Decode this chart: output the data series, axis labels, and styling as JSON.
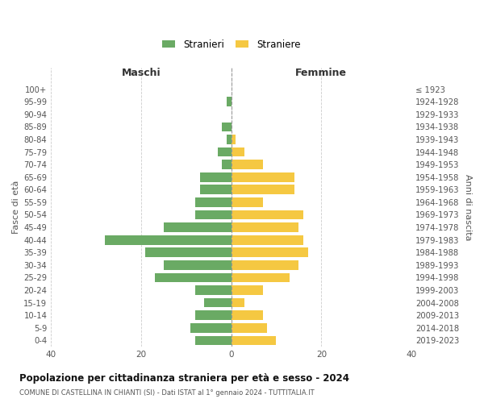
{
  "age_groups": [
    "0-4",
    "5-9",
    "10-14",
    "15-19",
    "20-24",
    "25-29",
    "30-34",
    "35-39",
    "40-44",
    "45-49",
    "50-54",
    "55-59",
    "60-64",
    "65-69",
    "70-74",
    "75-79",
    "80-84",
    "85-89",
    "90-94",
    "95-99",
    "100+"
  ],
  "birth_years": [
    "2019-2023",
    "2014-2018",
    "2009-2013",
    "2004-2008",
    "1999-2003",
    "1994-1998",
    "1989-1993",
    "1984-1988",
    "1979-1983",
    "1974-1978",
    "1969-1973",
    "1964-1968",
    "1959-1963",
    "1954-1958",
    "1949-1953",
    "1944-1948",
    "1939-1943",
    "1934-1938",
    "1929-1933",
    "1924-1928",
    "≤ 1923"
  ],
  "maschi": [
    8,
    9,
    8,
    6,
    8,
    17,
    15,
    19,
    28,
    15,
    8,
    8,
    7,
    7,
    2,
    3,
    1,
    2,
    0,
    1,
    0
  ],
  "femmine": [
    10,
    8,
    7,
    3,
    7,
    13,
    15,
    17,
    16,
    15,
    16,
    7,
    14,
    14,
    7,
    3,
    1,
    0,
    0,
    0,
    0
  ],
  "male_color": "#6aaa64",
  "female_color": "#f5c842",
  "title": "Popolazione per cittadinanza straniera per età e sesso - 2024",
  "subtitle": "COMUNE DI CASTELLINA IN CHIANTI (SI) - Dati ISTAT al 1° gennaio 2024 - TUTTITALIA.IT",
  "xlabel_left": "Maschi",
  "xlabel_right": "Femmine",
  "ylabel_left": "Fasce di età",
  "ylabel_right": "Anni di nascita",
  "legend_male": "Stranieri",
  "legend_female": "Straniere",
  "xlim": 40,
  "background_color": "#ffffff",
  "grid_color": "#cccccc"
}
